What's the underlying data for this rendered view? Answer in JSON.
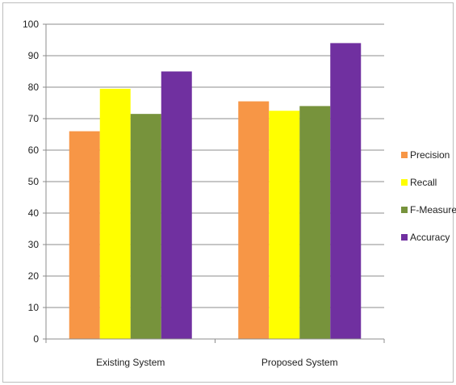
{
  "chart_data": {
    "type": "bar",
    "categories": [
      "Existing System",
      "Proposed System"
    ],
    "series": [
      {
        "name": "Precision",
        "color": "#f79646",
        "values": [
          66,
          75.5
        ]
      },
      {
        "name": "Recall",
        "color": "#ffff00",
        "values": [
          79.5,
          72.5
        ]
      },
      {
        "name": "F-Measure",
        "color": "#77933c",
        "values": [
          71.5,
          74
        ]
      },
      {
        "name": "Accuracy",
        "color": "#7030a0",
        "values": [
          85,
          94
        ]
      }
    ],
    "ylim": [
      0,
      100
    ],
    "yticks": [
      0,
      10,
      20,
      30,
      40,
      50,
      60,
      70,
      80,
      90,
      100
    ],
    "grid": true,
    "legend": "right",
    "title": "",
    "xlabel": "",
    "ylabel": ""
  }
}
